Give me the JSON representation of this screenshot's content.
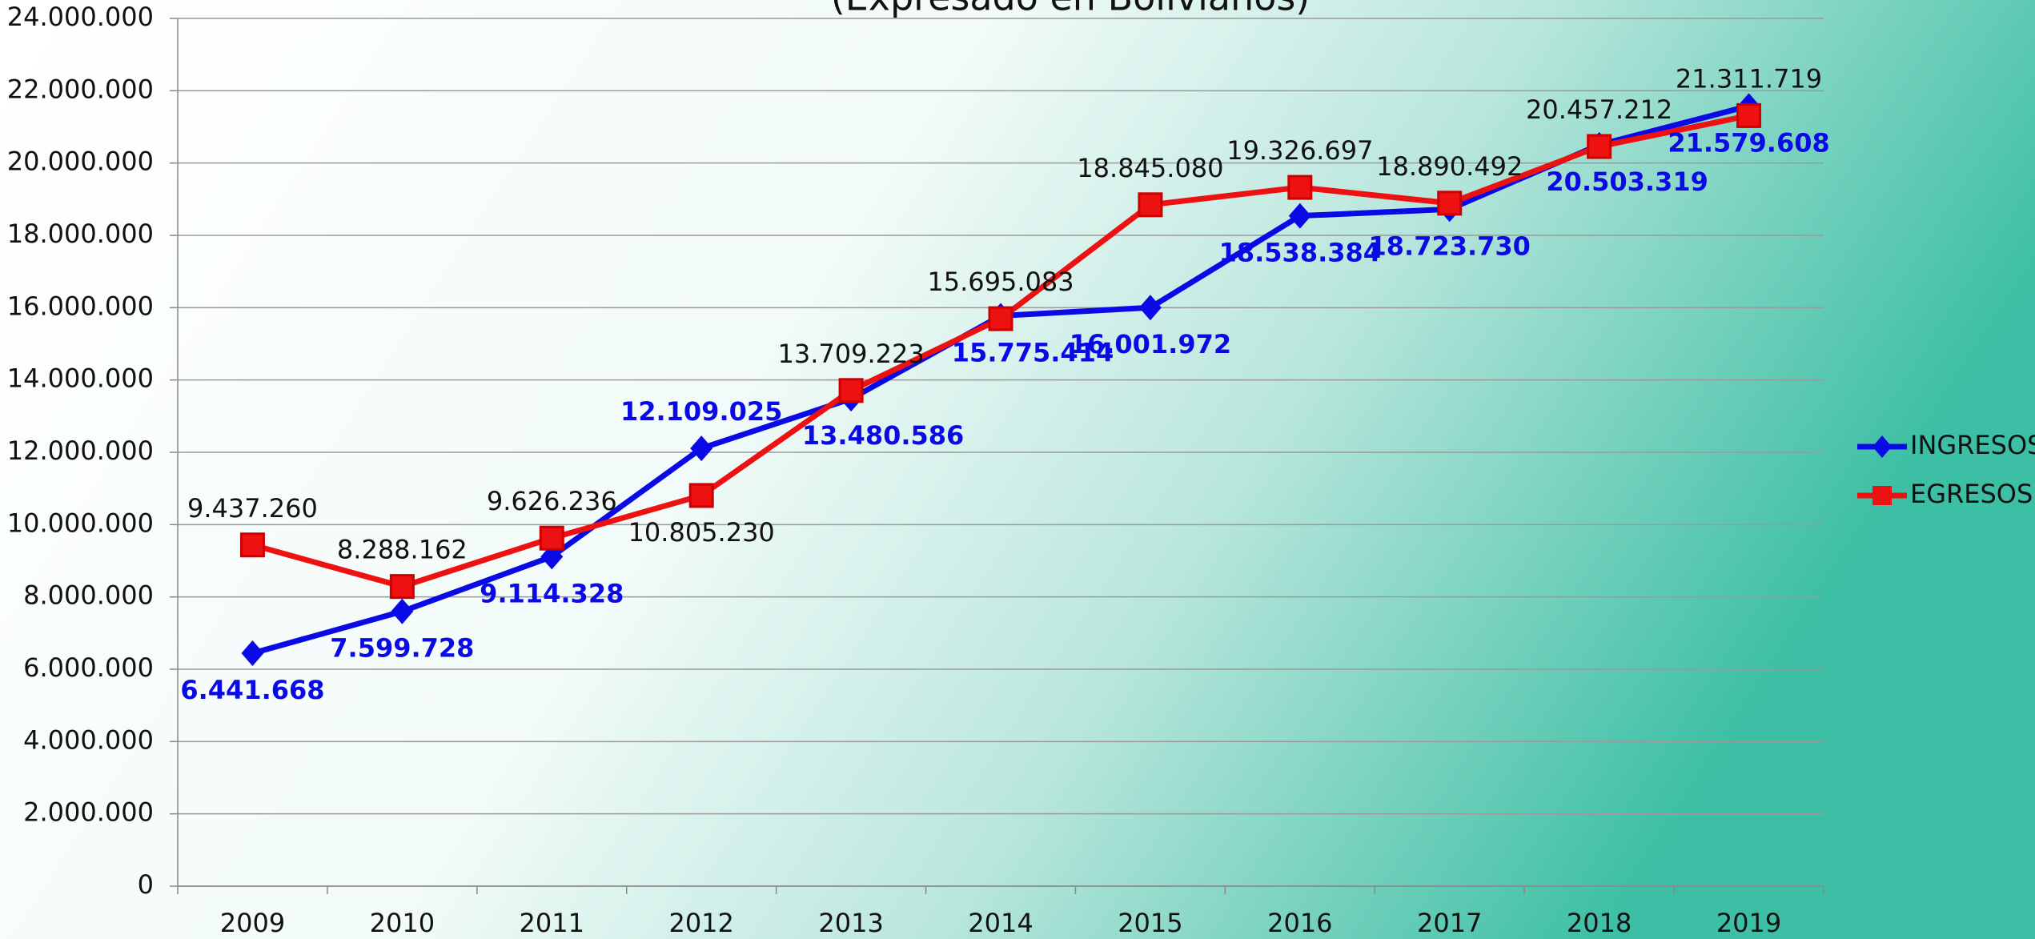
{
  "chart_data": {
    "type": "line",
    "subtitle": "(Expresado en Bolivianos)",
    "categories": [
      "2009",
      "2010",
      "2011",
      "2012",
      "2013",
      "2014",
      "2015",
      "2016",
      "2017",
      "2018",
      "2019"
    ],
    "series": [
      {
        "name": "INGRESOS",
        "color": "#0a0ae6",
        "marker": "diamond",
        "values": [
          6441668,
          7599728,
          9114328,
          12109025,
          13480586,
          15775414,
          16001972,
          18538384,
          18723730,
          20503319,
          21579608
        ],
        "value_labels": [
          "6.441.668",
          "7.599.728",
          "9.114.328",
          "12.109.025",
          "13.480.586",
          "15.775.414",
          "16.001.972",
          "18.538.384",
          "18.723.730",
          "20.503.319",
          "21.579.608"
        ]
      },
      {
        "name": "EGRESOS",
        "color": "#ee1111",
        "marker": "square",
        "values": [
          9437260,
          8288162,
          9626236,
          10805230,
          13709223,
          15695083,
          18845080,
          19326697,
          18890492,
          20457212,
          21311719
        ],
        "value_labels": [
          "9.437.260",
          "8.288.162",
          "9.626.236",
          "10.805.230",
          "13.709.223",
          "15.695.083",
          "18.845.080",
          "19.326.697",
          "18.890.492",
          "20.457.212",
          "21.311.719"
        ]
      }
    ],
    "ylim": [
      0,
      24000000
    ],
    "yticks": [
      0,
      {
        "value": 2000000,
        "label": "2.000.000"
      },
      {
        "value": 4000000,
        "label": "4.000.000"
      },
      {
        "value": 6000000,
        "label": "6.000.000"
      },
      {
        "value": 8000000,
        "label": "8.000.000"
      },
      {
        "value": 10000000,
        "label": "10.000.000"
      },
      {
        "value": 12000000,
        "label": "12.000.000"
      },
      {
        "value": 14000000,
        "label": "14.000.000"
      },
      {
        "value": 16000000,
        "label": "16.000.000"
      },
      {
        "value": 18000000,
        "label": "18.000.000"
      },
      {
        "value": 20000000,
        "label": "20.000.000"
      },
      {
        "value": 22000000,
        "label": "22.000.000"
      },
      {
        "value": 24000000,
        "label": "24.000.000"
      }
    ],
    "grid": true,
    "legend": "right"
  }
}
